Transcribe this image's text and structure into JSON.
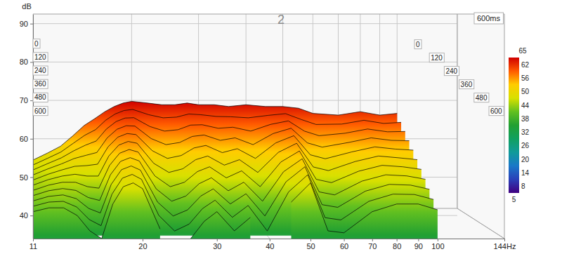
{
  "chart_data": {
    "type": "waterfall",
    "title": "2",
    "y_label": "dB",
    "annotations": [
      "600ms"
    ],
    "log": "x",
    "x": [
      11,
      12,
      13,
      14,
      15,
      16,
      17,
      18,
      19,
      20,
      22,
      24,
      26,
      28,
      30,
      33,
      36,
      40,
      45,
      50,
      55,
      60,
      70,
      80,
      90,
      100
    ],
    "z": [
      0,
      60,
      120,
      180,
      240,
      300,
      360,
      420,
      480,
      540,
      600
    ],
    "series": [
      {
        "values": [
          48,
          50,
          52,
          55,
          58,
          60,
          62,
          63.5,
          64.5,
          65,
          64.5,
          64,
          64,
          64.5,
          64,
          64,
          63.5,
          64,
          63.5,
          63.5,
          63,
          61.5,
          61,
          62,
          61,
          61.5
        ]
      },
      {
        "values": [
          47.3,
          49.2,
          51,
          53.5,
          55.8,
          57.4,
          60.1,
          61.9,
          62.9,
          63.2,
          61.7,
          60.8,
          61,
          61.9,
          61.7,
          61.2,
          61.1,
          60.8,
          61.5,
          62,
          60.3,
          58.9,
          59,
          60.1,
          59.2,
          59.5
        ]
      },
      {
        "values": [
          46.6,
          48.4,
          50,
          52,
          53.6,
          54.8,
          58.2,
          60.3,
          61.3,
          61.4,
          58.9,
          57.6,
          58,
          59.3,
          59.4,
          58.4,
          58.7,
          57.6,
          59.5,
          60.5,
          57.6,
          56.3,
          57,
          58.2,
          57.4,
          57.5
        ]
      },
      {
        "values": [
          45.9,
          47.6,
          49,
          50.5,
          51.4,
          52.2,
          56.3,
          58.7,
          59.7,
          59.6,
          56.1,
          54.4,
          55,
          56.7,
          57.1,
          55.6,
          56.3,
          54.4,
          57.5,
          59,
          54.9,
          53.7,
          55,
          56.3,
          55.6,
          55.5
        ]
      },
      {
        "values": [
          45.2,
          46.8,
          48,
          49,
          49.2,
          49.6,
          54.4,
          57.1,
          58.1,
          57.8,
          53.3,
          51.2,
          52,
          54.1,
          54.8,
          52.8,
          53.9,
          51.2,
          55.5,
          57.5,
          52.2,
          51.1,
          53,
          54.4,
          53.8,
          53.5
        ]
      },
      {
        "values": [
          44.5,
          46,
          47,
          47.5,
          47,
          47,
          52.5,
          55.5,
          56.5,
          56,
          50.5,
          48,
          49,
          51.5,
          52.5,
          50,
          51.5,
          48,
          53.5,
          56,
          49.5,
          48.5,
          51,
          52.5,
          52,
          51.5
        ]
      },
      {
        "values": [
          43.8,
          45.2,
          46,
          46,
          44.8,
          44.4,
          50.6,
          53.9,
          54.9,
          54.2,
          47.7,
          44.8,
          46,
          48.9,
          50.2,
          47.2,
          49.1,
          44.8,
          51.5,
          54.5,
          46.8,
          45.9,
          49,
          50.6,
          50.2,
          49.5
        ]
      },
      {
        "values": [
          43.1,
          44.4,
          45,
          44.5,
          42.6,
          41.8,
          48.7,
          52.3,
          53.3,
          52.4,
          44.9,
          41.6,
          43,
          46.3,
          47.9,
          44.4,
          46.7,
          41.6,
          49.5,
          53,
          44.1,
          43.3,
          47,
          48.7,
          48.4,
          47.5
        ]
      },
      {
        "values": [
          42.4,
          43.6,
          44,
          43,
          40.4,
          39.2,
          46.8,
          50.7,
          51.7,
          50.6,
          42.1,
          38.4,
          40,
          43.7,
          45.6,
          41.6,
          44.3,
          38.4,
          47.5,
          51.5,
          41.4,
          40.7,
          45,
          46.8,
          46.6,
          45.5
        ]
      },
      {
        "values": [
          41.7,
          42.8,
          43,
          41.5,
          38.2,
          36.6,
          44.9,
          49.1,
          50.1,
          48.8,
          39.3,
          35.2,
          37,
          41.1,
          43.3,
          38.8,
          41.9,
          35.2,
          45.5,
          50,
          38.7,
          38.1,
          43,
          44.9,
          44.8,
          43.5
        ]
      },
      {
        "values": [
          41,
          42,
          42,
          40,
          36,
          34,
          43,
          47.5,
          48.5,
          47,
          36.5,
          null,
          34,
          38.5,
          41,
          36,
          39.5,
          null,
          43.5,
          48.5,
          36,
          35.5,
          41,
          43,
          43,
          41.5
        ]
      }
    ],
    "xlim": [
      11,
      144
    ],
    "xticks": [
      11,
      20,
      30,
      40,
      50,
      60,
      70,
      80,
      90,
      100,
      {
        "value": 144,
        "label": "144Hz"
      }
    ],
    "ylim": [
      34,
      92.5
    ],
    "yticks": [
      40,
      50,
      60,
      70,
      80,
      90
    ],
    "zlim": [
      0,
      600
    ],
    "zticks": [
      0,
      120,
      240,
      360,
      480,
      600
    ],
    "colorbar": {
      "range": [
        5,
        65
      ],
      "ticks": [
        65,
        62,
        56,
        50,
        44,
        38,
        32,
        26,
        20,
        14,
        8,
        5
      ]
    }
  }
}
